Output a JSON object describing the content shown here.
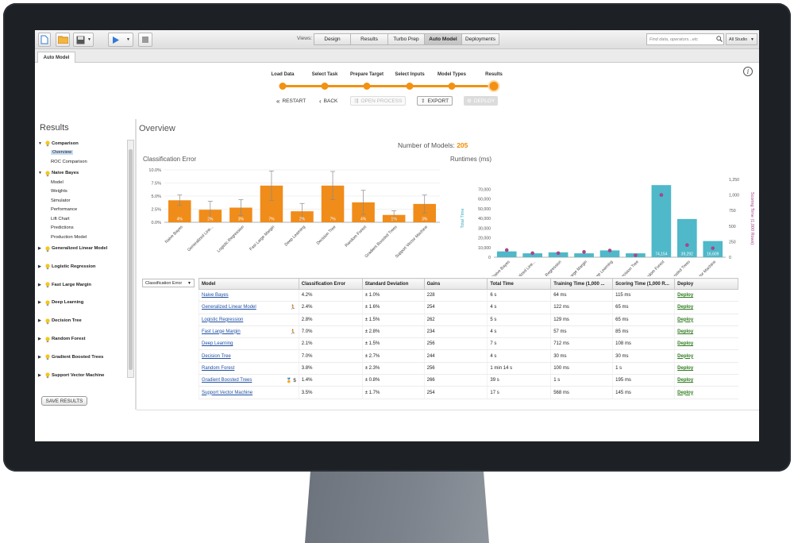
{
  "toolbar": {
    "views_label": "Views:",
    "views": [
      {
        "label": "Design",
        "active": false
      },
      {
        "label": "Results",
        "active": false
      },
      {
        "label": "Turbo Prep",
        "active": false
      },
      {
        "label": "Auto Model",
        "active": true
      },
      {
        "label": "Deployments",
        "active": false
      }
    ],
    "search_placeholder": "Find data, operators...etc",
    "studio_label": "All Studio"
  },
  "panel_tab": "Auto Model",
  "wizard": {
    "steps": [
      "Load Data",
      "Select Task",
      "Prepare Target",
      "Select Inputs",
      "Model Types",
      "Results"
    ],
    "active_step": 5,
    "restart": "RESTART",
    "back": "BACK",
    "open_process": "OPEN PROCESS",
    "export": "EXPORT",
    "deploy": "DEPLOY"
  },
  "sidebar": {
    "title": "Results",
    "groups": [
      {
        "label": "Comparison",
        "expanded": true,
        "items": [
          "Overview",
          "ROC Comparison"
        ],
        "selected": 0
      },
      {
        "label": "Naive Bayes",
        "expanded": true,
        "items": [
          "Model",
          "Weights",
          "Simulator",
          "Performance",
          "Lift Chart",
          "Predictions",
          "Production Model"
        ]
      },
      {
        "label": "Generalized Linear Model",
        "expanded": false
      },
      {
        "label": "Logistic Regression",
        "expanded": false
      },
      {
        "label": "Fast Large Margin",
        "expanded": false
      },
      {
        "label": "Deep Learning",
        "expanded": false
      },
      {
        "label": "Decision Tree",
        "expanded": false
      },
      {
        "label": "Random Forest",
        "expanded": false
      },
      {
        "label": "Gradient Boosted Trees",
        "expanded": false
      },
      {
        "label": "Support Vector Machine",
        "expanded": false
      }
    ],
    "save_button": "SAVE RESULTS"
  },
  "main": {
    "title": "Overview",
    "num_models_label": "Number of Models:",
    "num_models_value": "205",
    "metric_select": "Classification Error"
  },
  "chart_data": [
    {
      "type": "bar",
      "title": "Classification Error",
      "categories": [
        "Naive Bayes",
        "Generalized Line...",
        "Logistic Regression",
        "Fast Large Margin",
        "Deep Learning",
        "Decision Tree",
        "Random Forest",
        "Gradient Boosted Trees",
        "Support Vector Machine"
      ],
      "values": [
        4.2,
        2.4,
        2.8,
        7.0,
        2.1,
        7.0,
        3.8,
        1.4,
        3.5
      ],
      "data_labels": [
        "4%",
        "2%",
        "3%",
        "7%",
        "2%",
        "7%",
        "4%",
        "1%",
        "3%"
      ],
      "error": [
        1.0,
        1.6,
        1.5,
        2.8,
        1.5,
        2.7,
        2.3,
        0.8,
        1.7
      ],
      "ylim": [
        0,
        10
      ],
      "yticks": [
        "0.0%",
        "2.5%",
        "5.0%",
        "7.5%",
        "10.0%"
      ],
      "color": "#f08c1a",
      "grid": true
    },
    {
      "type": "bar",
      "title": "Runtimes (ms)",
      "categories": [
        "Naive Bayes",
        "Generalized Line...",
        "Logistic Regression",
        "Fast Large Margin",
        "Deep Learning",
        "Decision Tree",
        "Random Forest",
        "Gradient Boosted Trees",
        "Support Vector Machine"
      ],
      "values": [
        6000,
        4000,
        5000,
        4000,
        7000,
        4000,
        74154,
        39292,
        16609
      ],
      "data_labels": [
        "",
        "",
        "",
        "",
        "",
        "",
        "74,154",
        "39,292",
        "16,609"
      ],
      "scoring_time": [
        115,
        65,
        65,
        85,
        108,
        30,
        1000,
        195,
        145
      ],
      "ylabel": "Total Time",
      "y2label": "Scoring Time (1,000 Rows)",
      "ylim": [
        0,
        80000
      ],
      "yticks": [
        "0",
        "10,000",
        "20,000",
        "30,000",
        "40,000",
        "50,000",
        "60,000",
        "70,000"
      ],
      "y2lim": [
        0,
        1250
      ],
      "y2ticks": [
        "0",
        "250",
        "500",
        "750",
        "1,000",
        "1,250"
      ],
      "bar_color": "#4fb8c9",
      "point_color": "#a8458c"
    }
  ],
  "table": {
    "headers": [
      "Model",
      "Classification Error",
      "Standard Deviation",
      "Gains",
      "Total Time",
      "Training Time (1,000 ...",
      "Scoring Time (1,000 R...",
      "Deploy"
    ],
    "rows": [
      {
        "model": "Naive Bayes",
        "icons": "",
        "ce": "4.2%",
        "sd": "± 1.0%",
        "gains": "228",
        "total": "6 s",
        "train": "64 ms",
        "score": "115 ms",
        "deploy": "Deploy"
      },
      {
        "model": "Generalized Linear Model",
        "icons": "🏃",
        "ce": "2.4%",
        "sd": "± 1.6%",
        "gains": "254",
        "total": "4 s",
        "train": "122 ms",
        "score": "65 ms",
        "deploy": "Deploy"
      },
      {
        "model": "Logistic Regression",
        "icons": "",
        "ce": "2.8%",
        "sd": "± 1.5%",
        "gains": "262",
        "total": "5 s",
        "train": "129 ms",
        "score": "65 ms",
        "deploy": "Deploy"
      },
      {
        "model": "Fast Large Margin",
        "icons": "🏃",
        "ce": "7.0%",
        "sd": "± 2.8%",
        "gains": "234",
        "total": "4 s",
        "train": "57 ms",
        "score": "85 ms",
        "deploy": "Deploy"
      },
      {
        "model": "Deep Learning",
        "icons": "",
        "ce": "2.1%",
        "sd": "± 1.5%",
        "gains": "256",
        "total": "7 s",
        "train": "712 ms",
        "score": "108 ms",
        "deploy": "Deploy"
      },
      {
        "model": "Decision Tree",
        "icons": "",
        "ce": "7.0%",
        "sd": "± 2.7%",
        "gains": "244",
        "total": "4 s",
        "train": "30 ms",
        "score": "30 ms",
        "deploy": "Deploy"
      },
      {
        "model": "Random Forest",
        "icons": "",
        "ce": "3.8%",
        "sd": "± 2.3%",
        "gains": "256",
        "total": "1 min 14 s",
        "train": "100 ms",
        "score": "1 s",
        "deploy": "Deploy"
      },
      {
        "model": "Gradient Boosted Trees",
        "icons": "🏅 $",
        "ce": "1.4%",
        "sd": "± 0.8%",
        "gains": "266",
        "total": "39 s",
        "train": "1 s",
        "score": "195 ms",
        "deploy": "Deploy"
      },
      {
        "model": "Support Vector Machine",
        "icons": "",
        "ce": "3.5%",
        "sd": "± 1.7%",
        "gains": "254",
        "total": "17 s",
        "train": "568 ms",
        "score": "145 ms",
        "deploy": "Deploy"
      }
    ]
  }
}
